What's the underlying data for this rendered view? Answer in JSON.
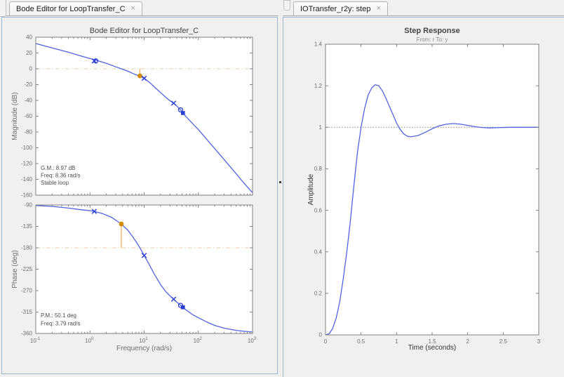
{
  "tabs": {
    "left": {
      "label": "Bode Editor for LoopTransfer_C",
      "close_glyph": "×"
    },
    "right": {
      "label": "IOTransfer_r2y: step",
      "close_glyph": "×"
    }
  },
  "colors": {
    "background": "#f0f0f0",
    "plot_bg": "#ffffff",
    "panel_border": "#9fb5d1",
    "axes_border": "#808080",
    "tick_label": "#6e6e6e",
    "curve_blue": "#4f63e2",
    "marker_blue": "#2b3fd6",
    "ref_orange": "#eccfa5",
    "margin_orange": "#d18c00",
    "margin_stem": "#e5ab55"
  },
  "chart_data": [
    {
      "id": "bode-magnitude",
      "type": "line",
      "title": "Bode Editor for LoopTransfer_C",
      "ylabel": "Magnitude (dB)",
      "xscale": "log",
      "xlim": [
        0.1,
        1000
      ],
      "ylim": [
        -160,
        40
      ],
      "yticks": [
        40,
        20,
        0,
        -20,
        -40,
        -60,
        -80,
        -100,
        -120,
        -140,
        -160
      ],
      "xtick_decades": [
        -1,
        0,
        1,
        2,
        3
      ],
      "show_xtick_labels": false,
      "editable": true,
      "ref_line": {
        "y": 0,
        "style": "dashdot",
        "name": "zero-db-line"
      },
      "curve": [
        [
          0.1,
          32
        ],
        [
          0.2,
          26.5
        ],
        [
          0.4,
          21
        ],
        [
          0.7,
          16
        ],
        [
          1,
          13
        ],
        [
          1.5,
          9.5
        ],
        [
          2,
          7
        ],
        [
          3,
          2.5
        ],
        [
          3.79,
          0
        ],
        [
          5,
          -3
        ],
        [
          6,
          -5.5
        ],
        [
          7,
          -7.5
        ],
        [
          8.36,
          -8.97
        ],
        [
          10,
          -12
        ],
        [
          13,
          -18
        ],
        [
          16,
          -24
        ],
        [
          20,
          -30
        ],
        [
          25,
          -36
        ],
        [
          30,
          -40.5
        ],
        [
          35,
          -43.5
        ],
        [
          40,
          -47
        ],
        [
          47,
          -52
        ],
        [
          52,
          -56
        ],
        [
          60,
          -61
        ],
        [
          80,
          -70
        ],
        [
          100,
          -77
        ],
        [
          150,
          -91
        ],
        [
          200,
          -101
        ],
        [
          300,
          -115
        ],
        [
          500,
          -133
        ],
        [
          700,
          -145
        ],
        [
          1000,
          -157
        ]
      ],
      "pole_markers": [
        [
          1.2,
          10
        ],
        [
          10,
          -12
        ],
        [
          35,
          -43.5
        ]
      ],
      "zero_markers": [
        [
          1.28,
          10
        ],
        [
          47,
          -52
        ]
      ],
      "selected_marker": [
        52,
        -56
      ],
      "margin": {
        "freq": 8.36,
        "from": 0,
        "to": -8.97
      },
      "annotations": [
        "G.M.: 8.97 dB",
        "Freq: 8.36 rad/s",
        "Stable loop"
      ]
    },
    {
      "id": "bode-phase",
      "type": "line",
      "ylabel": "Phase (deg)",
      "xlabel": "Frequency (rad/s)",
      "xscale": "log",
      "xlim": [
        0.1,
        1000
      ],
      "ylim": [
        -360,
        -90
      ],
      "yticks": [
        -90,
        -135,
        -180,
        -225,
        -270,
        -315,
        -360
      ],
      "xtick_decades": [
        -1,
        0,
        1,
        2,
        3
      ],
      "show_xtick_labels": true,
      "editable": true,
      "ref_line": {
        "y": -180,
        "style": "dashdot",
        "name": "minus-180-line"
      },
      "curve": [
        [
          0.1,
          -91
        ],
        [
          0.2,
          -93
        ],
        [
          0.4,
          -96.5
        ],
        [
          0.7,
          -100
        ],
        [
          1,
          -102
        ],
        [
          1.2,
          -103.5
        ],
        [
          1.7,
          -108
        ],
        [
          2.5,
          -116
        ],
        [
          3.79,
          -129.9
        ],
        [
          5,
          -143
        ],
        [
          6,
          -155
        ],
        [
          7,
          -166
        ],
        [
          8.36,
          -180
        ],
        [
          10,
          -196
        ],
        [
          12,
          -212
        ],
        [
          15,
          -233
        ],
        [
          20,
          -257
        ],
        [
          25,
          -272
        ],
        [
          30,
          -281
        ],
        [
          35,
          -288
        ],
        [
          40,
          -294
        ],
        [
          47,
          -301
        ],
        [
          52,
          -305
        ],
        [
          60,
          -311
        ],
        [
          80,
          -321
        ],
        [
          100,
          -327
        ],
        [
          150,
          -337
        ],
        [
          200,
          -343
        ],
        [
          300,
          -349
        ],
        [
          500,
          -353.5
        ],
        [
          700,
          -355.5
        ],
        [
          1000,
          -357
        ]
      ],
      "pole_markers": [
        [
          1.2,
          -103.5
        ],
        [
          10,
          -196
        ],
        [
          35,
          -288
        ]
      ],
      "zero_markers": [
        [
          47,
          -301
        ]
      ],
      "selected_marker": [
        52,
        -305
      ],
      "margin": {
        "freq": 3.79,
        "from": -180,
        "to": -129.9
      },
      "annotations": [
        "P.M.: 50.1 deg",
        "Freq: 3.79 rad/s"
      ]
    },
    {
      "id": "step-response",
      "type": "line",
      "title": "Step Response",
      "title_bold": true,
      "subtitle": "From: r  To: y",
      "xlabel": "Time (seconds)",
      "ylabel": "Amplitude",
      "dark_labels": true,
      "xscale": "linear",
      "xlim": [
        0,
        3
      ],
      "ylim": [
        0,
        1.4
      ],
      "xticks": [
        0,
        0.5,
        1,
        1.5,
        2,
        2.5,
        3
      ],
      "yticks": [
        0,
        0.2,
        0.4,
        0.6,
        0.8,
        1,
        1.2,
        1.4
      ],
      "editable": false,
      "ref_line": {
        "y": 1,
        "style": "dotted",
        "name": "steady-state-line"
      },
      "curve": [
        [
          0,
          0
        ],
        [
          0.05,
          0.005
        ],
        [
          0.1,
          0.03
        ],
        [
          0.15,
          0.08
        ],
        [
          0.2,
          0.16
        ],
        [
          0.25,
          0.27
        ],
        [
          0.3,
          0.4
        ],
        [
          0.35,
          0.55
        ],
        [
          0.4,
          0.72
        ],
        [
          0.45,
          0.88
        ],
        [
          0.5,
          1.0
        ],
        [
          0.55,
          1.09
        ],
        [
          0.6,
          1.155
        ],
        [
          0.65,
          1.19
        ],
        [
          0.7,
          1.205
        ],
        [
          0.75,
          1.2
        ],
        [
          0.8,
          1.175
        ],
        [
          0.85,
          1.14
        ],
        [
          0.9,
          1.1
        ],
        [
          0.95,
          1.06
        ],
        [
          1.0,
          1.02
        ],
        [
          1.05,
          0.99
        ],
        [
          1.1,
          0.968
        ],
        [
          1.15,
          0.957
        ],
        [
          1.2,
          0.954
        ],
        [
          1.3,
          0.96
        ],
        [
          1.4,
          0.975
        ],
        [
          1.5,
          0.993
        ],
        [
          1.6,
          1.007
        ],
        [
          1.7,
          1.015
        ],
        [
          1.8,
          1.018
        ],
        [
          1.9,
          1.015
        ],
        [
          2.0,
          1.009
        ],
        [
          2.1,
          1.003
        ],
        [
          2.2,
          0.999
        ],
        [
          2.3,
          0.997
        ],
        [
          2.4,
          0.998
        ],
        [
          2.6,
          1.0
        ],
        [
          2.8,
          1.0
        ],
        [
          3.0,
          1.0
        ]
      ]
    }
  ]
}
